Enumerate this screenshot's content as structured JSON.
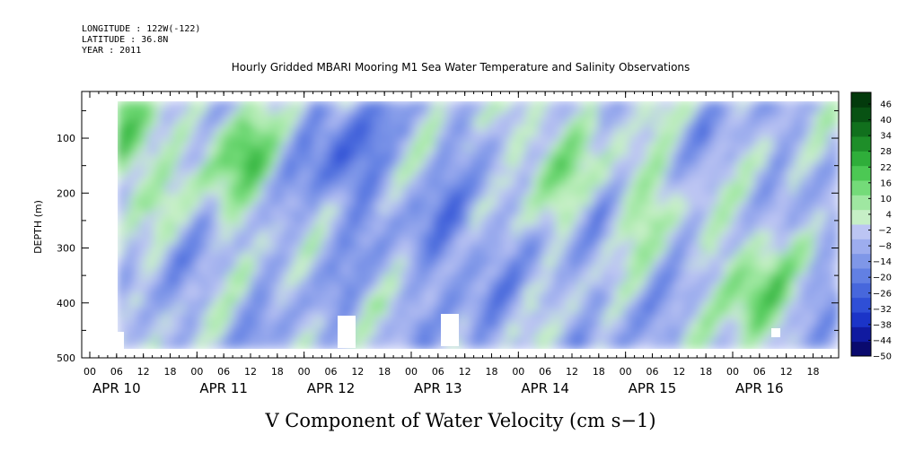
{
  "header": {
    "longitude": "LONGITUDE : 122W(-122)",
    "latitude": "LATITUDE : 36.8N",
    "year": "YEAR : 2011"
  },
  "chart_data": {
    "type": "heatmap",
    "title": "Hourly Gridded MBARI Mooring M1 Sea Water Temperature and Salinity Observations",
    "bottom_title": "V Component of Water Velocity (cm s−1)",
    "ylabel": "DEPTH (m)",
    "ylim": [
      500,
      15
    ],
    "y_reversed": true,
    "y_ticks": [
      100,
      200,
      300,
      400,
      500
    ],
    "x_hour_ticks": [
      "00",
      "06",
      "12",
      "18",
      "00",
      "06",
      "12",
      "18",
      "00",
      "06",
      "12",
      "18",
      "00",
      "06",
      "12",
      "18",
      "00",
      "06",
      "12",
      "18",
      "00",
      "06",
      "12",
      "18",
      "00",
      "06",
      "12",
      "18"
    ],
    "x_day_labels": [
      "APR 10",
      "APR 11",
      "APR 12",
      "APR 13",
      "APR 14",
      "APR 15",
      "APR 16"
    ],
    "x_range_days": 7,
    "colorbar": {
      "ticks": [
        "46",
        "40",
        "34",
        "28",
        "22",
        "16",
        "10",
        "4",
        "−2",
        "−8",
        "−14",
        "−20",
        "−26",
        "−32",
        "−38",
        "−44",
        "−50"
      ],
      "min": -50,
      "max": 52,
      "colors": [
        "#0a0a6e",
        "#101aa0",
        "#1b34c8",
        "#2f4fd6",
        "#4767dc",
        "#6280e3",
        "#7f97e8",
        "#9dadee",
        "#bcc5f3",
        "#c6efc6",
        "#9fe7a1",
        "#74db79",
        "#4cc854",
        "#2fae3a",
        "#1e8e29",
        "#11701d",
        "#085213",
        "#033a0c"
      ]
    },
    "series": [
      {
        "x_day": 0.35,
        "depth": 110,
        "value": 28
      },
      {
        "x_day": 1.4,
        "depth": 140,
        "value": 22
      },
      {
        "x_day": 2.4,
        "depth": 140,
        "value": -26
      },
      {
        "x_day": 3.45,
        "depth": 300,
        "value": -20
      },
      {
        "x_day": 4.3,
        "depth": 120,
        "value": 16
      },
      {
        "x_day": 5.2,
        "depth": 200,
        "value": 10
      },
      {
        "x_day": 6.2,
        "depth": 370,
        "value": 22
      }
    ]
  }
}
